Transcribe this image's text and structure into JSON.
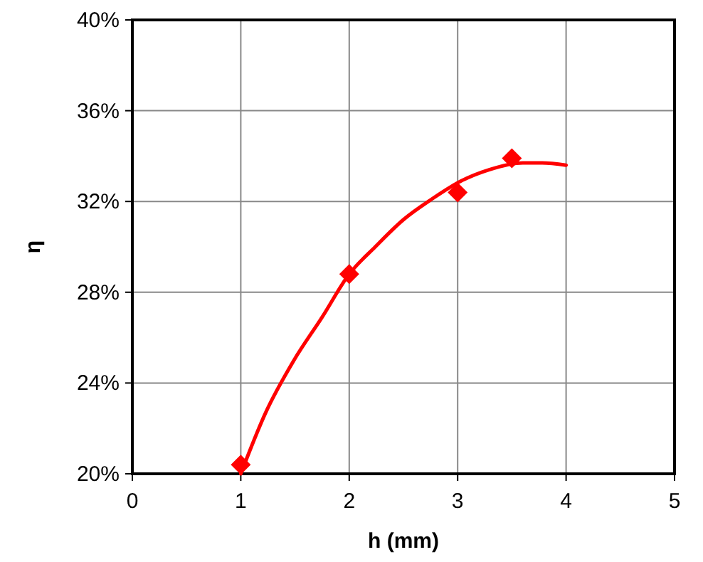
{
  "chart_data": {
    "type": "scatter",
    "xlabel": "h (mm)",
    "ylabel": "η",
    "xlim": [
      0,
      5
    ],
    "xticks": [
      0,
      1,
      2,
      3,
      4,
      5
    ],
    "ylim": [
      20,
      40
    ],
    "yticks": [
      {
        "value": 20,
        "label": "20%"
      },
      {
        "value": 24,
        "label": "24%"
      },
      {
        "value": 28,
        "label": "28%"
      },
      {
        "value": 32,
        "label": "32%"
      },
      {
        "value": 36,
        "label": "36%"
      },
      {
        "value": 40,
        "label": "40%"
      }
    ],
    "grid": true,
    "series": [
      {
        "type": "scatter",
        "color": "#ff0000",
        "marker": "diamond",
        "x": [
          1,
          2,
          3,
          3.5
        ],
        "values": [
          20.4,
          28.8,
          32.4,
          33.9
        ]
      },
      {
        "type": "line",
        "color": "#ff0000",
        "marker": "none",
        "line_style": "solid",
        "x": [
          1,
          1.23,
          1.49,
          1.75,
          2,
          2.24,
          2.5,
          2.76,
          3.03,
          3.29,
          3.6,
          3.78,
          4
        ],
        "values": [
          20,
          22.7,
          25,
          26.9,
          28.8,
          30,
          31.2,
          32.1,
          32.9,
          33.4,
          33.7,
          33.7,
          33.6
        ]
      }
    ]
  }
}
